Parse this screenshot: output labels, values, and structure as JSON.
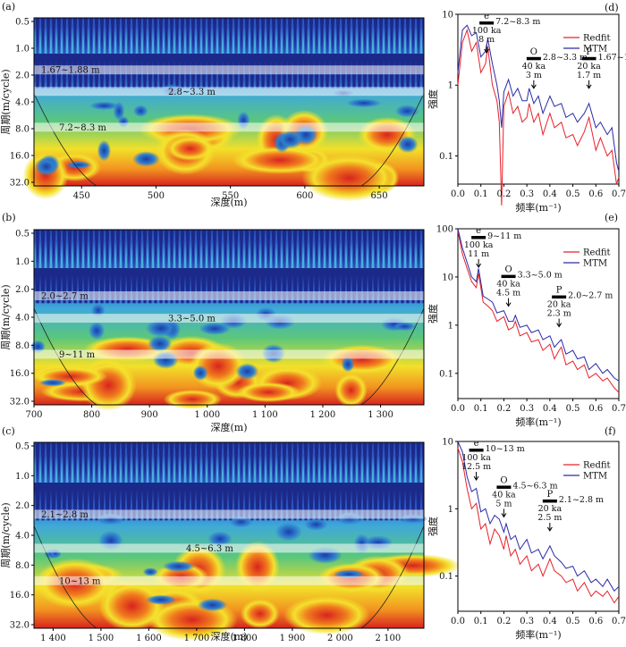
{
  "wavelet_panels": [
    {
      "panel_label": "(a)",
      "xlabel": "深度(m)",
      "ylabel": "周期(m/cycle)",
      "xticks": [
        "450",
        "500",
        "550",
        "600",
        "650"
      ],
      "xtick_values": [
        450,
        500,
        550,
        600,
        650
      ],
      "xlim": [
        418,
        680
      ],
      "yticks": [
        "0.5",
        "1.0",
        "2.0",
        "4.0",
        "8.0",
        "16.0",
        "32.0"
      ],
      "bands": [
        {
          "label": "1.67~1.88 m",
          "period": 1.75
        },
        {
          "label": "2.8~3.3 m",
          "period": 3.05
        },
        {
          "label": "7.2~8.3 m",
          "period": 7.7
        }
      ]
    },
    {
      "panel_label": "(b)",
      "xlabel": "深度(m)",
      "ylabel": "周期(m/cycle)",
      "xticks": [
        "700",
        "800",
        "900",
        "1 000",
        "1 100",
        "1 200",
        "1 300"
      ],
      "xtick_values": [
        700,
        800,
        900,
        1000,
        1100,
        1200,
        1300
      ],
      "xlim": [
        700,
        1375
      ],
      "yticks": [
        "0.5",
        "1.0",
        "2.0",
        "4.0",
        "8.0",
        "16.0",
        "32.0"
      ],
      "bands": [
        {
          "label": "2.0~2.7 m",
          "period": 2.35
        },
        {
          "label": "3.3~5.0 m",
          "period": 4.1
        },
        {
          "label": "9~11 m",
          "period": 10
        }
      ]
    },
    {
      "panel_label": "(c)",
      "xlabel": "深度(m)",
      "ylabel": "周期(m/cycle)",
      "xticks": [
        "1 400",
        "1 500",
        "1 600",
        "1 700",
        "1 800",
        "1 900",
        "2 000",
        "2 100"
      ],
      "xtick_values": [
        1400,
        1500,
        1600,
        1700,
        1800,
        1900,
        2000,
        2100
      ],
      "xlim": [
        1360,
        2175
      ],
      "yticks": [
        "0.5",
        "1.0",
        "2.0",
        "4.0",
        "8.0",
        "16.0",
        "32.0"
      ],
      "bands": [
        {
          "label": "2.1~2.8 m",
          "period": 2.45
        },
        {
          "label": "4.5~6.3 m",
          "period": 5.4
        },
        {
          "label": "10~13 m",
          "period": 11.5
        }
      ]
    }
  ],
  "chart_data": [
    {
      "type": "line",
      "panel_label": "(d)",
      "xlabel": "频率(m⁻¹)",
      "ylabel": "强度",
      "xlim": [
        0,
        0.7
      ],
      "xticks": [
        "0.0",
        "0.1",
        "0.2",
        "0.3",
        "0.4",
        "0.5",
        "0.6",
        "0.7"
      ],
      "ylog": true,
      "ylim": [
        0.04,
        10
      ],
      "yticks": [
        "0.1",
        "1",
        "10"
      ],
      "legend": [
        "Redfit",
        "MTM"
      ],
      "series": [
        {
          "name": "Redfit",
          "color": "#e8202a",
          "x": [
            0,
            0.02,
            0.04,
            0.06,
            0.08,
            0.1,
            0.12,
            0.13,
            0.15,
            0.17,
            0.18,
            0.19,
            0.2,
            0.22,
            0.24,
            0.26,
            0.28,
            0.3,
            0.31,
            0.33,
            0.35,
            0.37,
            0.4,
            0.42,
            0.45,
            0.47,
            0.5,
            0.52,
            0.55,
            0.57,
            0.6,
            0.62,
            0.65,
            0.67,
            0.69,
            0.7
          ],
          "y": [
            1,
            4,
            6,
            3,
            4,
            1.5,
            2,
            3.5,
            1,
            0.6,
            0.3,
            0.02,
            0.5,
            0.8,
            0.4,
            0.5,
            0.3,
            0.35,
            0.55,
            0.3,
            0.4,
            0.2,
            0.4,
            0.25,
            0.3,
            0.18,
            0.2,
            0.14,
            0.22,
            0.35,
            0.12,
            0.18,
            0.1,
            0.12,
            0.04,
            0.05
          ]
        },
        {
          "name": "MTM",
          "color": "#2a2aa8",
          "x": [
            0,
            0.02,
            0.04,
            0.06,
            0.08,
            0.1,
            0.12,
            0.13,
            0.15,
            0.17,
            0.18,
            0.19,
            0.2,
            0.22,
            0.24,
            0.26,
            0.28,
            0.3,
            0.31,
            0.33,
            0.35,
            0.37,
            0.4,
            0.42,
            0.45,
            0.47,
            0.5,
            0.52,
            0.55,
            0.57,
            0.6,
            0.62,
            0.65,
            0.67,
            0.69,
            0.7
          ],
          "y": [
            1.5,
            6,
            7,
            5,
            5.5,
            2.5,
            3,
            4.5,
            2,
            1,
            0.6,
            0.25,
            0.8,
            1.2,
            0.7,
            0.9,
            0.6,
            0.6,
            0.9,
            0.55,
            0.7,
            0.4,
            0.7,
            0.5,
            0.55,
            0.35,
            0.4,
            0.3,
            0.4,
            0.55,
            0.25,
            0.3,
            0.2,
            0.25,
            0.08,
            0.06
          ]
        }
      ],
      "annotations": [
        {
          "symbol": "e",
          "range": "7.2~8.3 m",
          "cycle": "100 ka",
          "period": "8 m",
          "freq": 0.125
        },
        {
          "symbol": "O",
          "range": "2.8~3.3 m",
          "cycle": "40 ka",
          "period": "3 m",
          "freq": 0.33
        },
        {
          "symbol": "P",
          "range": "1.67~1.88 m",
          "cycle": "20 ka",
          "period": "1.7 m",
          "freq": 0.57
        }
      ]
    },
    {
      "type": "line",
      "panel_label": "(e)",
      "xlabel": "频率(m⁻¹)",
      "ylabel": "强度",
      "xlim": [
        0,
        0.7
      ],
      "xticks": [
        "0.0",
        "0.1",
        "0.2",
        "0.3",
        "0.4",
        "0.5",
        "0.6",
        "0.7"
      ],
      "ylog": true,
      "ylim": [
        0.03,
        100
      ],
      "yticks": [
        "0.1",
        "1",
        "10",
        "100"
      ],
      "legend": [
        "Redfit",
        "MTM"
      ],
      "series": [
        {
          "name": "Redfit",
          "color": "#e8202a",
          "x": [
            0,
            0.02,
            0.04,
            0.06,
            0.08,
            0.09,
            0.11,
            0.13,
            0.15,
            0.17,
            0.2,
            0.22,
            0.24,
            0.25,
            0.27,
            0.3,
            0.32,
            0.35,
            0.37,
            0.4,
            0.42,
            0.44,
            0.45,
            0.47,
            0.5,
            0.52,
            0.55,
            0.57,
            0.6,
            0.63,
            0.65,
            0.68,
            0.7
          ],
          "y": [
            90,
            30,
            15,
            8,
            6,
            12,
            3,
            2.5,
            2,
            1.2,
            1.5,
            0.8,
            0.9,
            1.2,
            0.6,
            0.7,
            0.45,
            0.5,
            0.3,
            0.4,
            0.2,
            0.3,
            0.35,
            0.15,
            0.18,
            0.12,
            0.15,
            0.08,
            0.1,
            0.07,
            0.08,
            0.05,
            0.04
          ]
        },
        {
          "name": "MTM",
          "color": "#2a2aa8",
          "x": [
            0,
            0.02,
            0.04,
            0.06,
            0.08,
            0.09,
            0.11,
            0.13,
            0.15,
            0.17,
            0.2,
            0.22,
            0.24,
            0.25,
            0.27,
            0.3,
            0.32,
            0.35,
            0.37,
            0.4,
            0.42,
            0.44,
            0.45,
            0.47,
            0.5,
            0.52,
            0.55,
            0.57,
            0.6,
            0.63,
            0.65,
            0.68,
            0.7
          ],
          "y": [
            100,
            40,
            20,
            10,
            8,
            15,
            4,
            3.5,
            3,
            1.8,
            2,
            1.2,
            1.2,
            1.6,
            0.9,
            1,
            0.7,
            0.8,
            0.5,
            0.6,
            0.35,
            0.45,
            0.5,
            0.25,
            0.3,
            0.2,
            0.22,
            0.12,
            0.16,
            0.1,
            0.12,
            0.08,
            0.07
          ]
        }
      ],
      "annotations": [
        {
          "symbol": "e",
          "range": "9~11 m",
          "cycle": "100 ka",
          "period": "11 m",
          "freq": 0.09
        },
        {
          "symbol": "O",
          "range": "3.3~5.0 m",
          "cycle": "40 ka",
          "period": "4.5 m",
          "freq": 0.22
        },
        {
          "symbol": "P",
          "range": "2.0~2.7 m",
          "cycle": "20 ka",
          "period": "2.3 m",
          "freq": 0.44
        }
      ]
    },
    {
      "type": "line",
      "panel_label": "(f)",
      "xlabel": "频率(m⁻¹)",
      "ylabel": "强度",
      "xlim": [
        0,
        0.7
      ],
      "xticks": [
        "0.0",
        "0.1",
        "0.2",
        "0.3",
        "0.4",
        "0.5",
        "0.6",
        "0.7"
      ],
      "ylog": true,
      "ylim": [
        0.03,
        10
      ],
      "yticks": [
        "0.1",
        "1",
        "10"
      ],
      "legend": [
        "Redfit",
        "MTM"
      ],
      "series": [
        {
          "name": "Redfit",
          "color": "#e8202a",
          "x": [
            0,
            0.02,
            0.04,
            0.06,
            0.08,
            0.1,
            0.12,
            0.14,
            0.16,
            0.18,
            0.2,
            0.21,
            0.23,
            0.25,
            0.27,
            0.3,
            0.32,
            0.35,
            0.37,
            0.4,
            0.42,
            0.45,
            0.47,
            0.5,
            0.52,
            0.55,
            0.58,
            0.6,
            0.63,
            0.65,
            0.68,
            0.7
          ],
          "y": [
            8,
            5,
            2,
            1,
            1.2,
            0.5,
            0.6,
            0.3,
            0.5,
            0.4,
            0.25,
            0.4,
            0.2,
            0.25,
            0.15,
            0.2,
            0.12,
            0.15,
            0.1,
            0.18,
            0.12,
            0.1,
            0.08,
            0.09,
            0.06,
            0.08,
            0.05,
            0.06,
            0.05,
            0.06,
            0.04,
            0.05
          ]
        },
        {
          "name": "MTM",
          "color": "#2a2aa8",
          "x": [
            0,
            0.02,
            0.04,
            0.06,
            0.08,
            0.1,
            0.12,
            0.14,
            0.16,
            0.18,
            0.2,
            0.21,
            0.23,
            0.25,
            0.27,
            0.3,
            0.32,
            0.35,
            0.37,
            0.4,
            0.42,
            0.45,
            0.47,
            0.5,
            0.52,
            0.55,
            0.58,
            0.6,
            0.63,
            0.65,
            0.68,
            0.7
          ],
          "y": [
            10,
            7,
            3,
            1.8,
            2,
            0.9,
            1,
            0.6,
            0.8,
            0.7,
            0.45,
            0.6,
            0.35,
            0.4,
            0.25,
            0.35,
            0.22,
            0.25,
            0.18,
            0.28,
            0.2,
            0.16,
            0.13,
            0.14,
            0.1,
            0.12,
            0.08,
            0.09,
            0.07,
            0.09,
            0.06,
            0.07
          ]
        }
      ],
      "annotations": [
        {
          "symbol": "e",
          "range": "10~13 m",
          "cycle": "100 ka",
          "period": "12.5 m",
          "freq": 0.08
        },
        {
          "symbol": "O",
          "range": "4.5~6.3 m",
          "cycle": "40 ka",
          "period": "5 m",
          "freq": 0.2
        },
        {
          "symbol": "P",
          "range": "2.1~2.8 m",
          "cycle": "20 ka",
          "period": "2.5 m",
          "freq": 0.4
        }
      ]
    }
  ]
}
